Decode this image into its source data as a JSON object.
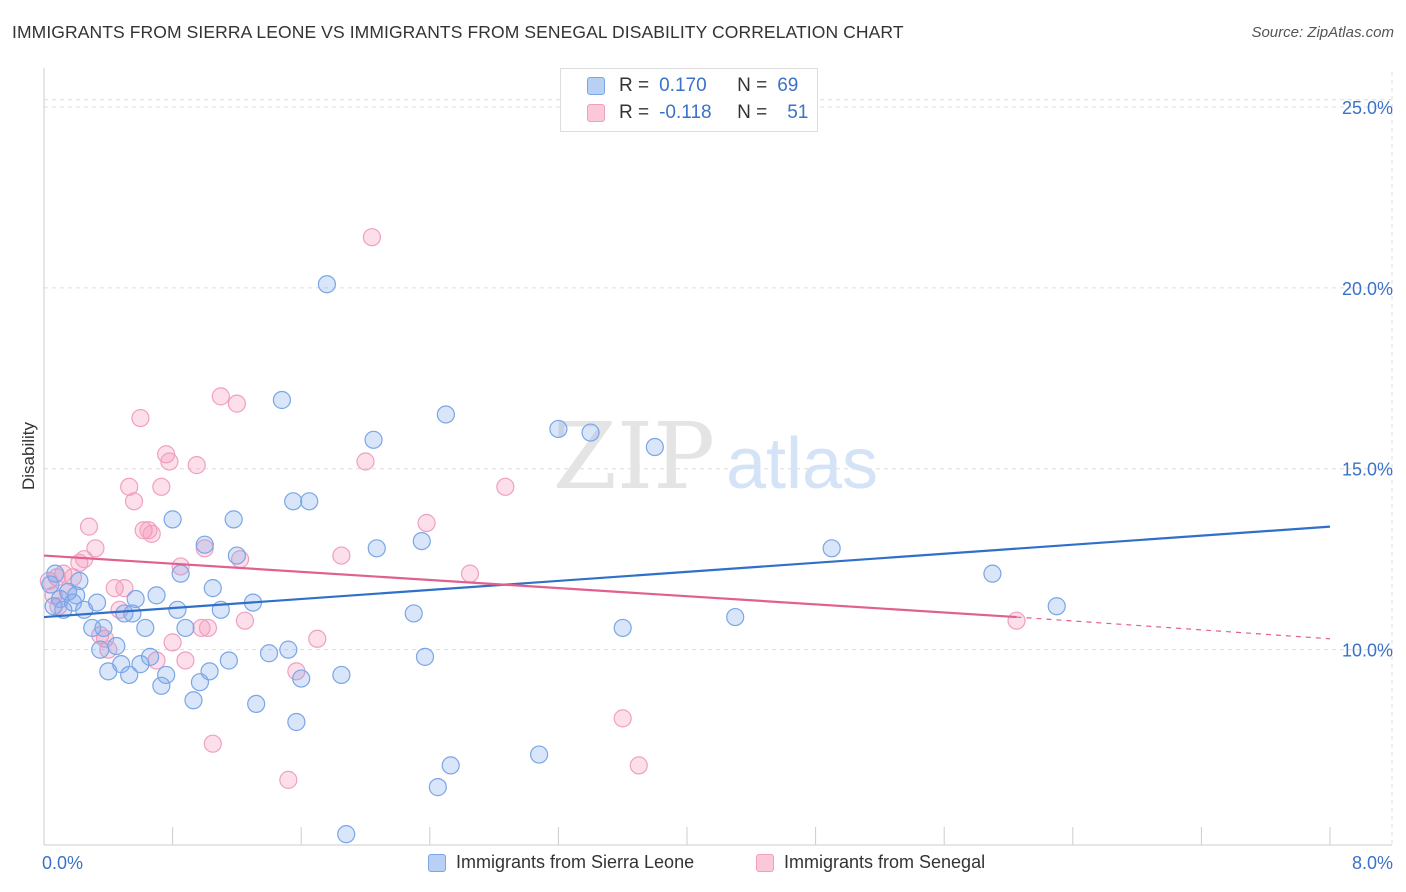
{
  "title": "IMMIGRANTS FROM SIERRA LEONE VS IMMIGRANTS FROM SENEGAL DISABILITY CORRELATION CHART",
  "source": "Source: ZipAtlas.com",
  "watermark": {
    "zip": "ZIP",
    "atlas": "atlas"
  },
  "stats": [
    {
      "r_label": "R =",
      "r_value": "0.170",
      "n_label": "N =",
      "n_value": "69",
      "color": "#6fa0e6"
    },
    {
      "r_label": "R =",
      "r_value": "-0.118",
      "n_label": "N =",
      "n_value": "51",
      "color": "#f08cb0"
    }
  ],
  "colors": {
    "blue_fill": "rgba(130,170,235,0.30)",
    "blue_stroke": "#7aa6e6",
    "blue_line": "#3070c8",
    "pink_fill": "rgba(245,150,185,0.30)",
    "pink_stroke": "#f0a0bf",
    "pink_line": "#e0608f",
    "axis_text": "#3a72c8"
  },
  "chart_data": {
    "type": "scatter",
    "title": "IMMIGRANTS FROM SIERRA LEONE VS IMMIGRANTS FROM SENEGAL DISABILITY CORRELATION CHART",
    "xlabel": "",
    "ylabel": "Disability",
    "xlim": [
      0,
      8
    ],
    "ylim": [
      4.6,
      25.8
    ],
    "x_tick_labels": [
      "0.0%",
      "8.0%"
    ],
    "y_ticks": [
      10,
      15,
      20,
      25
    ],
    "y_tick_labels": [
      "10.0%",
      "15.0%",
      "20.0%",
      "25.0%"
    ],
    "grid": true,
    "legend_position": "bottom",
    "series": [
      {
        "name": "Immigrants from Sierra Leone",
        "color": "#7aa6e6",
        "trend": {
          "x": [
            0,
            8
          ],
          "y": [
            10.9,
            13.4
          ]
        },
        "points": [
          [
            0.04,
            11.8
          ],
          [
            0.07,
            12.1
          ],
          [
            0.1,
            11.4
          ],
          [
            0.12,
            11.1
          ],
          [
            0.15,
            11.6
          ],
          [
            0.18,
            11.3
          ],
          [
            0.22,
            11.9
          ],
          [
            0.25,
            11.1
          ],
          [
            0.3,
            10.6
          ],
          [
            0.33,
            11.3
          ],
          [
            0.35,
            10.0
          ],
          [
            0.37,
            10.6
          ],
          [
            0.4,
            9.4
          ],
          [
            0.45,
            10.1
          ],
          [
            0.48,
            9.6
          ],
          [
            0.5,
            11.0
          ],
          [
            0.53,
            9.3
          ],
          [
            0.57,
            11.4
          ],
          [
            0.6,
            9.6
          ],
          [
            0.63,
            10.6
          ],
          [
            0.66,
            9.8
          ],
          [
            0.7,
            11.5
          ],
          [
            0.73,
            9.0
          ],
          [
            0.76,
            9.3
          ],
          [
            0.8,
            13.6
          ],
          [
            0.83,
            11.1
          ],
          [
            0.85,
            12.1
          ],
          [
            0.88,
            10.6
          ],
          [
            0.93,
            8.6
          ],
          [
            0.97,
            9.1
          ],
          [
            1.0,
            12.9
          ],
          [
            1.03,
            9.4
          ],
          [
            1.05,
            11.7
          ],
          [
            1.1,
            11.1
          ],
          [
            1.15,
            9.7
          ],
          [
            1.18,
            13.6
          ],
          [
            1.2,
            12.6
          ],
          [
            1.3,
            11.3
          ],
          [
            1.32,
            8.5
          ],
          [
            1.4,
            9.9
          ],
          [
            1.48,
            16.9
          ],
          [
            1.52,
            10.0
          ],
          [
            1.55,
            14.1
          ],
          [
            1.57,
            8.0
          ],
          [
            1.6,
            9.2
          ],
          [
            1.65,
            14.1
          ],
          [
            1.76,
            20.1
          ],
          [
            1.85,
            9.3
          ],
          [
            1.88,
            4.9
          ],
          [
            2.05,
            15.8
          ],
          [
            2.07,
            12.8
          ],
          [
            2.3,
            11.0
          ],
          [
            2.35,
            13.0
          ],
          [
            2.37,
            9.8
          ],
          [
            2.45,
            6.2
          ],
          [
            2.5,
            16.5
          ],
          [
            2.53,
            6.8
          ],
          [
            3.08,
            7.1
          ],
          [
            3.2,
            16.1
          ],
          [
            3.4,
            16.0
          ],
          [
            3.6,
            10.6
          ],
          [
            3.8,
            15.6
          ],
          [
            4.3,
            10.9
          ],
          [
            4.9,
            12.8
          ],
          [
            5.9,
            12.1
          ],
          [
            6.3,
            11.2
          ],
          [
            0.06,
            11.2
          ],
          [
            0.2,
            11.5
          ],
          [
            0.55,
            11.0
          ]
        ]
      },
      {
        "name": "Immigrants from Senegal",
        "color": "#f0a0bf",
        "trend": {
          "x": [
            0,
            6.05
          ],
          "y": [
            12.6,
            10.9
          ]
        },
        "trend_dashed": {
          "x": [
            6.05,
            8
          ],
          "y": [
            10.9,
            10.3
          ]
        },
        "points": [
          [
            0.03,
            11.9
          ],
          [
            0.06,
            11.5
          ],
          [
            0.09,
            11.2
          ],
          [
            0.12,
            12.1
          ],
          [
            0.15,
            11.6
          ],
          [
            0.18,
            12.0
          ],
          [
            0.22,
            12.4
          ],
          [
            0.25,
            12.5
          ],
          [
            0.28,
            13.4
          ],
          [
            0.32,
            12.8
          ],
          [
            0.35,
            10.4
          ],
          [
            0.38,
            10.3
          ],
          [
            0.4,
            10.0
          ],
          [
            0.44,
            11.7
          ],
          [
            0.47,
            11.1
          ],
          [
            0.5,
            11.7
          ],
          [
            0.53,
            14.5
          ],
          [
            0.56,
            14.1
          ],
          [
            0.6,
            16.4
          ],
          [
            0.62,
            13.3
          ],
          [
            0.65,
            13.3
          ],
          [
            0.67,
            13.2
          ],
          [
            0.7,
            9.7
          ],
          [
            0.73,
            14.5
          ],
          [
            0.76,
            15.4
          ],
          [
            0.78,
            15.2
          ],
          [
            0.8,
            10.2
          ],
          [
            0.85,
            12.3
          ],
          [
            0.88,
            9.7
          ],
          [
            0.95,
            15.1
          ],
          [
            0.98,
            10.6
          ],
          [
            1.0,
            12.8
          ],
          [
            1.02,
            10.6
          ],
          [
            1.05,
            7.4
          ],
          [
            1.1,
            17.0
          ],
          [
            1.2,
            16.8
          ],
          [
            1.22,
            12.5
          ],
          [
            1.25,
            10.8
          ],
          [
            1.52,
            6.4
          ],
          [
            1.57,
            9.4
          ],
          [
            1.7,
            10.3
          ],
          [
            1.85,
            12.6
          ],
          [
            2.0,
            15.2
          ],
          [
            2.04,
            21.4
          ],
          [
            2.38,
            13.5
          ],
          [
            2.65,
            12.1
          ],
          [
            2.87,
            14.5
          ],
          [
            3.6,
            8.1
          ],
          [
            3.7,
            6.8
          ],
          [
            6.05,
            10.8
          ],
          [
            0.08,
            12.0
          ]
        ]
      }
    ]
  },
  "legend": [
    {
      "label": "Immigrants from Sierra Leone",
      "fill": "#b8d0f4",
      "stroke": "#7aa6e6"
    },
    {
      "label": "Immigrants from Senegal",
      "fill": "#fac8d8",
      "stroke": "#f0a0bf"
    }
  ]
}
